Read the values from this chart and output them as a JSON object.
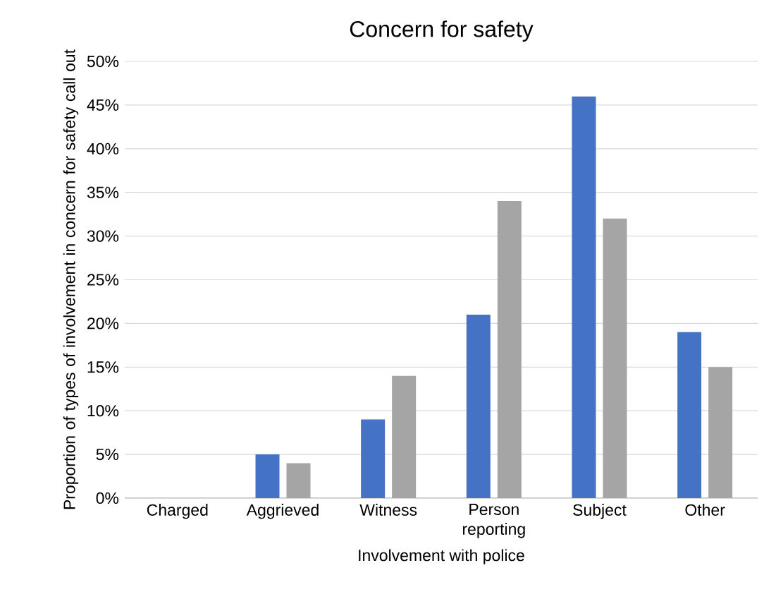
{
  "chart_data": {
    "type": "bar",
    "title": "Concern for safety",
    "xlabel": "Involvement with police",
    "ylabel": "Proportion of types of involvement in concern for safety call out",
    "categories": [
      "Charged",
      "Aggrieved",
      "Witness",
      "Person reporting",
      "Subject",
      "Other"
    ],
    "series": [
      {
        "color": "#4472c4",
        "values": [
          0,
          5,
          9,
          21,
          46,
          19
        ]
      },
      {
        "color": "#a5a5a5",
        "values": [
          0,
          4,
          14,
          34,
          32,
          15
        ]
      }
    ],
    "ylim": [
      0,
      50
    ],
    "yticks": [
      {
        "value": 0,
        "label": "0%"
      },
      {
        "value": 5,
        "label": "5%"
      },
      {
        "value": 10,
        "label": "10%"
      },
      {
        "value": 15,
        "label": "15%"
      },
      {
        "value": 20,
        "label": "20%"
      },
      {
        "value": 25,
        "label": "25%"
      },
      {
        "value": 30,
        "label": "30%"
      },
      {
        "value": 35,
        "label": "35%"
      },
      {
        "value": 40,
        "label": "40%"
      },
      {
        "value": 45,
        "label": "45%"
      },
      {
        "value": 50,
        "label": "50%"
      }
    ],
    "grid": "y"
  }
}
